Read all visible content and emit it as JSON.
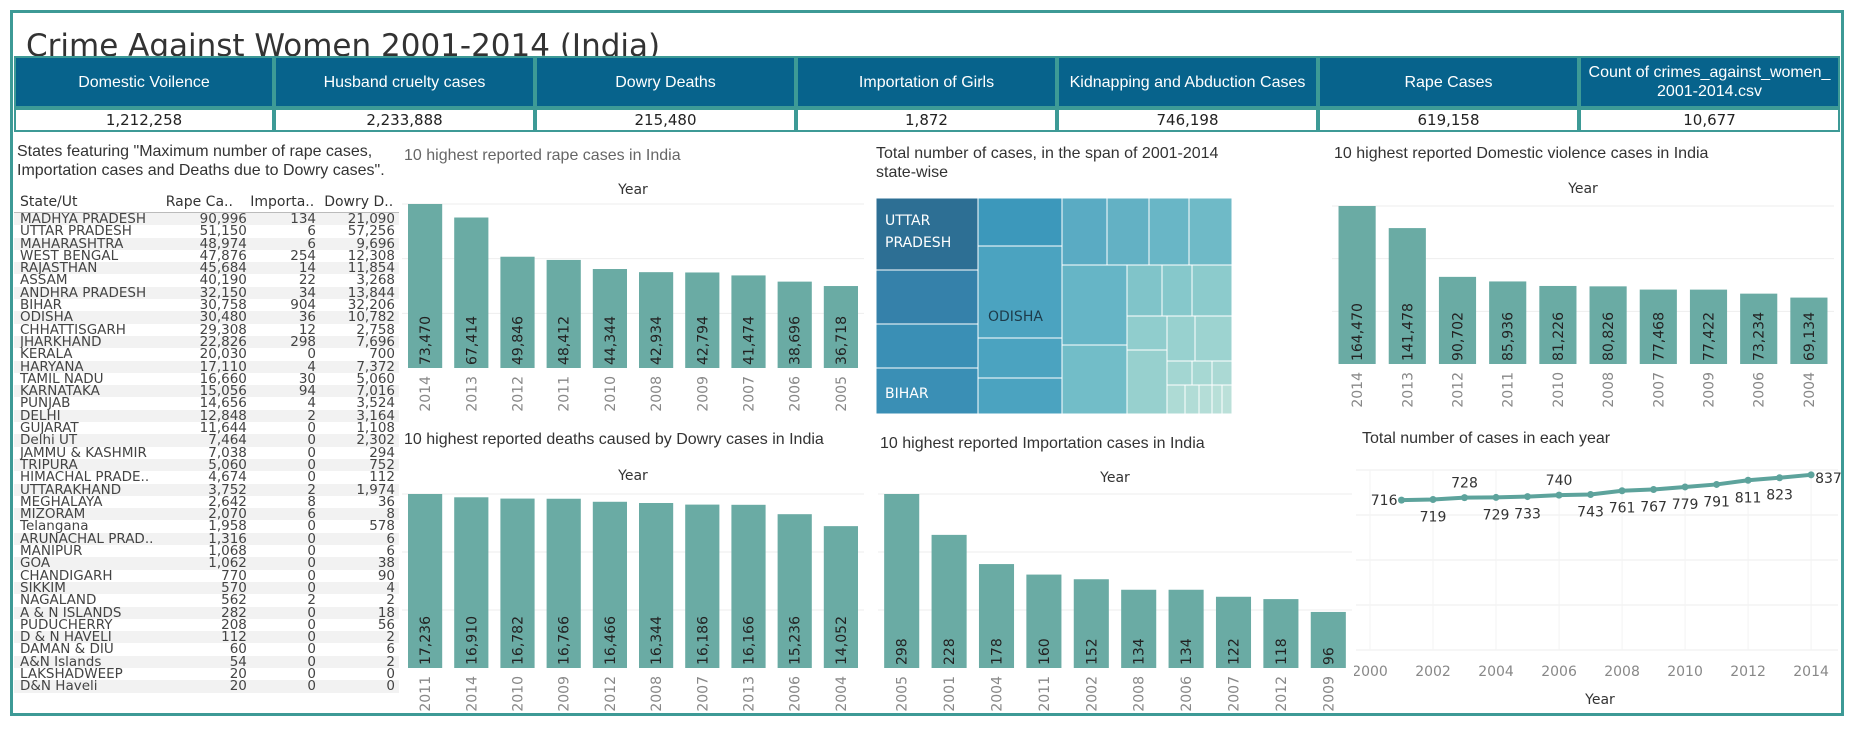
{
  "title": "Crime Against Women 2001-2014 (India)",
  "kpis": [
    {
      "label": "Domestic Voilence",
      "value": "1,212,258"
    },
    {
      "label": "Husband cruelty cases",
      "value": "2,233,888"
    },
    {
      "label": "Dowry Deaths",
      "value": "215,480"
    },
    {
      "label": "Importation of Girls",
      "value": "1,872"
    },
    {
      "label": "Kidnapping and Abduction Cases",
      "value": "746,198"
    },
    {
      "label": "Rape Cases",
      "value": "619,158"
    },
    {
      "label": "Count of crimes_against_women_\n2001-2014.csv",
      "value": "10,677"
    }
  ],
  "colors": {
    "bar": "#6aaba4",
    "frame": "#3d9a96",
    "kpi_bg": "#07638c",
    "line": "#5da39c"
  },
  "state_table": {
    "title": "States featuring  \"Maximum number of rape cases, Importation cases and Deaths due to Dowry cases\".",
    "columns": [
      "State/Ut",
      "Rape Ca..",
      "Importa..",
      "Dowry D.."
    ],
    "rows": [
      [
        "MADHYA PRADESH",
        "90,996",
        "134",
        "21,090"
      ],
      [
        "UTTAR PRADESH",
        "51,150",
        "6",
        "57,256"
      ],
      [
        "MAHARASHTRA",
        "48,974",
        "6",
        "9,696"
      ],
      [
        "WEST BENGAL",
        "47,876",
        "254",
        "12,308"
      ],
      [
        "RAJASTHAN",
        "45,684",
        "14",
        "11,854"
      ],
      [
        "ASSAM",
        "40,190",
        "22",
        "3,268"
      ],
      [
        "ANDHRA PRADESH",
        "32,150",
        "34",
        "13,844"
      ],
      [
        "BIHAR",
        "30,758",
        "904",
        "32,206"
      ],
      [
        "ODISHA",
        "30,480",
        "36",
        "10,782"
      ],
      [
        "CHHATTISGARH",
        "29,308",
        "12",
        "2,758"
      ],
      [
        "JHARKHAND",
        "22,826",
        "298",
        "7,696"
      ],
      [
        "KERALA",
        "20,030",
        "0",
        "700"
      ],
      [
        "HARYANA",
        "17,110",
        "4",
        "7,372"
      ],
      [
        "TAMIL NADU",
        "16,660",
        "30",
        "5,060"
      ],
      [
        "KARNATAKA",
        "15,056",
        "94",
        "7,016"
      ],
      [
        "PUNJAB",
        "14,656",
        "4",
        "3,524"
      ],
      [
        "DELHI",
        "12,848",
        "2",
        "3,164"
      ],
      [
        "GUJARAT",
        "11,644",
        "0",
        "1,108"
      ],
      [
        "Delhi UT",
        "7,464",
        "0",
        "2,302"
      ],
      [
        "JAMMU & KASHMIR",
        "7,038",
        "0",
        "294"
      ],
      [
        "TRIPURA",
        "5,060",
        "0",
        "752"
      ],
      [
        "HIMACHAL PRADE..",
        "4,674",
        "0",
        "112"
      ],
      [
        "UTTARAKHAND",
        "3,752",
        "2",
        "1,974"
      ],
      [
        "MEGHALAYA",
        "2,642",
        "8",
        "36"
      ],
      [
        "MIZORAM",
        "2,070",
        "6",
        "8"
      ],
      [
        "Telangana",
        "1,958",
        "0",
        "578"
      ],
      [
        "ARUNACHAL PRAD..",
        "1,316",
        "0",
        "6"
      ],
      [
        "MANIPUR",
        "1,068",
        "0",
        "6"
      ],
      [
        "GOA",
        "1,062",
        "0",
        "38"
      ],
      [
        "CHANDIGARH",
        "770",
        "0",
        "90"
      ],
      [
        "SIKKIM",
        "570",
        "0",
        "4"
      ],
      [
        "NAGALAND",
        "562",
        "2",
        "2"
      ],
      [
        "A & N ISLANDS",
        "282",
        "0",
        "18"
      ],
      [
        "PUDUCHERRY",
        "208",
        "0",
        "56"
      ],
      [
        "D & N HAVELI",
        "112",
        "0",
        "2"
      ],
      [
        "DAMAN & DIU",
        "60",
        "0",
        "6"
      ],
      [
        "A&N Islands",
        "54",
        "0",
        "2"
      ],
      [
        "LAKSHADWEEP",
        "20",
        "0",
        "0"
      ],
      [
        "D&N Haveli",
        "20",
        "0",
        "0"
      ]
    ]
  },
  "treemap": {
    "title": "Total number of cases, in the span of 2001-2014 state-wise",
    "labels": [
      "UTTAR\nPRADESH",
      "ODISHA",
      "BIHAR"
    ]
  },
  "chart_data": [
    {
      "id": "rape",
      "type": "bar",
      "title": "10 highest reported rape cases in India",
      "xlabel": "Year",
      "categories": [
        "2014",
        "2013",
        "2012",
        "2011",
        "2010",
        "2008",
        "2009",
        "2007",
        "2006",
        "2005"
      ],
      "values": [
        73470,
        67414,
        49846,
        48412,
        44344,
        42934,
        42794,
        41474,
        38696,
        36718
      ],
      "value_labels": [
        "73,470",
        "67,414",
        "49,846",
        "48,412",
        "44,344",
        "42,934",
        "42,794",
        "41,474",
        "38,696",
        "36,718"
      ]
    },
    {
      "id": "domestic",
      "type": "bar",
      "title": "10 highest reported Domestic violence cases in India",
      "xlabel": "Year",
      "categories": [
        "2014",
        "2013",
        "2012",
        "2011",
        "2010",
        "2008",
        "2007",
        "2009",
        "2006",
        "2004"
      ],
      "values": [
        164470,
        141478,
        90702,
        85936,
        81226,
        80826,
        77468,
        77422,
        73234,
        69134
      ],
      "value_labels": [
        "164,470",
        "141,478",
        "90,702",
        "85,936",
        "81,226",
        "80,826",
        "77,468",
        "77,422",
        "73,234",
        "69,134"
      ]
    },
    {
      "id": "dowry",
      "type": "bar",
      "title": "10 highest reported deaths caused by Dowry cases in India",
      "xlabel": "Year",
      "categories": [
        "2011",
        "2014",
        "2010",
        "2009",
        "2012",
        "2008",
        "2007",
        "2013",
        "2006",
        "2004"
      ],
      "values": [
        17236,
        16910,
        16782,
        16766,
        16466,
        16344,
        16186,
        16166,
        15236,
        14052
      ],
      "value_labels": [
        "17,236",
        "16,910",
        "16,782",
        "16,766",
        "16,466",
        "16,344",
        "16,186",
        "16,166",
        "15,236",
        "14,052"
      ]
    },
    {
      "id": "importation",
      "type": "bar",
      "title": "10 highest reported Importation cases in India",
      "xlabel": "Year",
      "categories": [
        "2005",
        "2001",
        "2004",
        "2011",
        "2002",
        "2008",
        "2006",
        "2007",
        "2012",
        "2009"
      ],
      "values": [
        298,
        228,
        178,
        160,
        152,
        134,
        134,
        122,
        118,
        96
      ],
      "value_labels": [
        "298",
        "228",
        "178",
        "160",
        "152",
        "134",
        "134",
        "122",
        "118",
        "96"
      ]
    },
    {
      "id": "yearly",
      "type": "line",
      "title": "Total number of cases in each year",
      "xlabel": "Year",
      "x": [
        2001,
        2002,
        2003,
        2004,
        2005,
        2006,
        2007,
        2008,
        2009,
        2010,
        2011,
        2012,
        2013,
        2014
      ],
      "values": [
        716,
        719,
        728,
        729,
        733,
        740,
        743,
        761,
        767,
        779,
        791,
        811,
        823,
        837
      ],
      "xticks": [
        "2000",
        "2002",
        "2004",
        "2006",
        "2008",
        "2010",
        "2012",
        "2014"
      ],
      "xlim": [
        2000,
        2014.6
      ],
      "ylim": [
        0,
        860
      ]
    }
  ]
}
